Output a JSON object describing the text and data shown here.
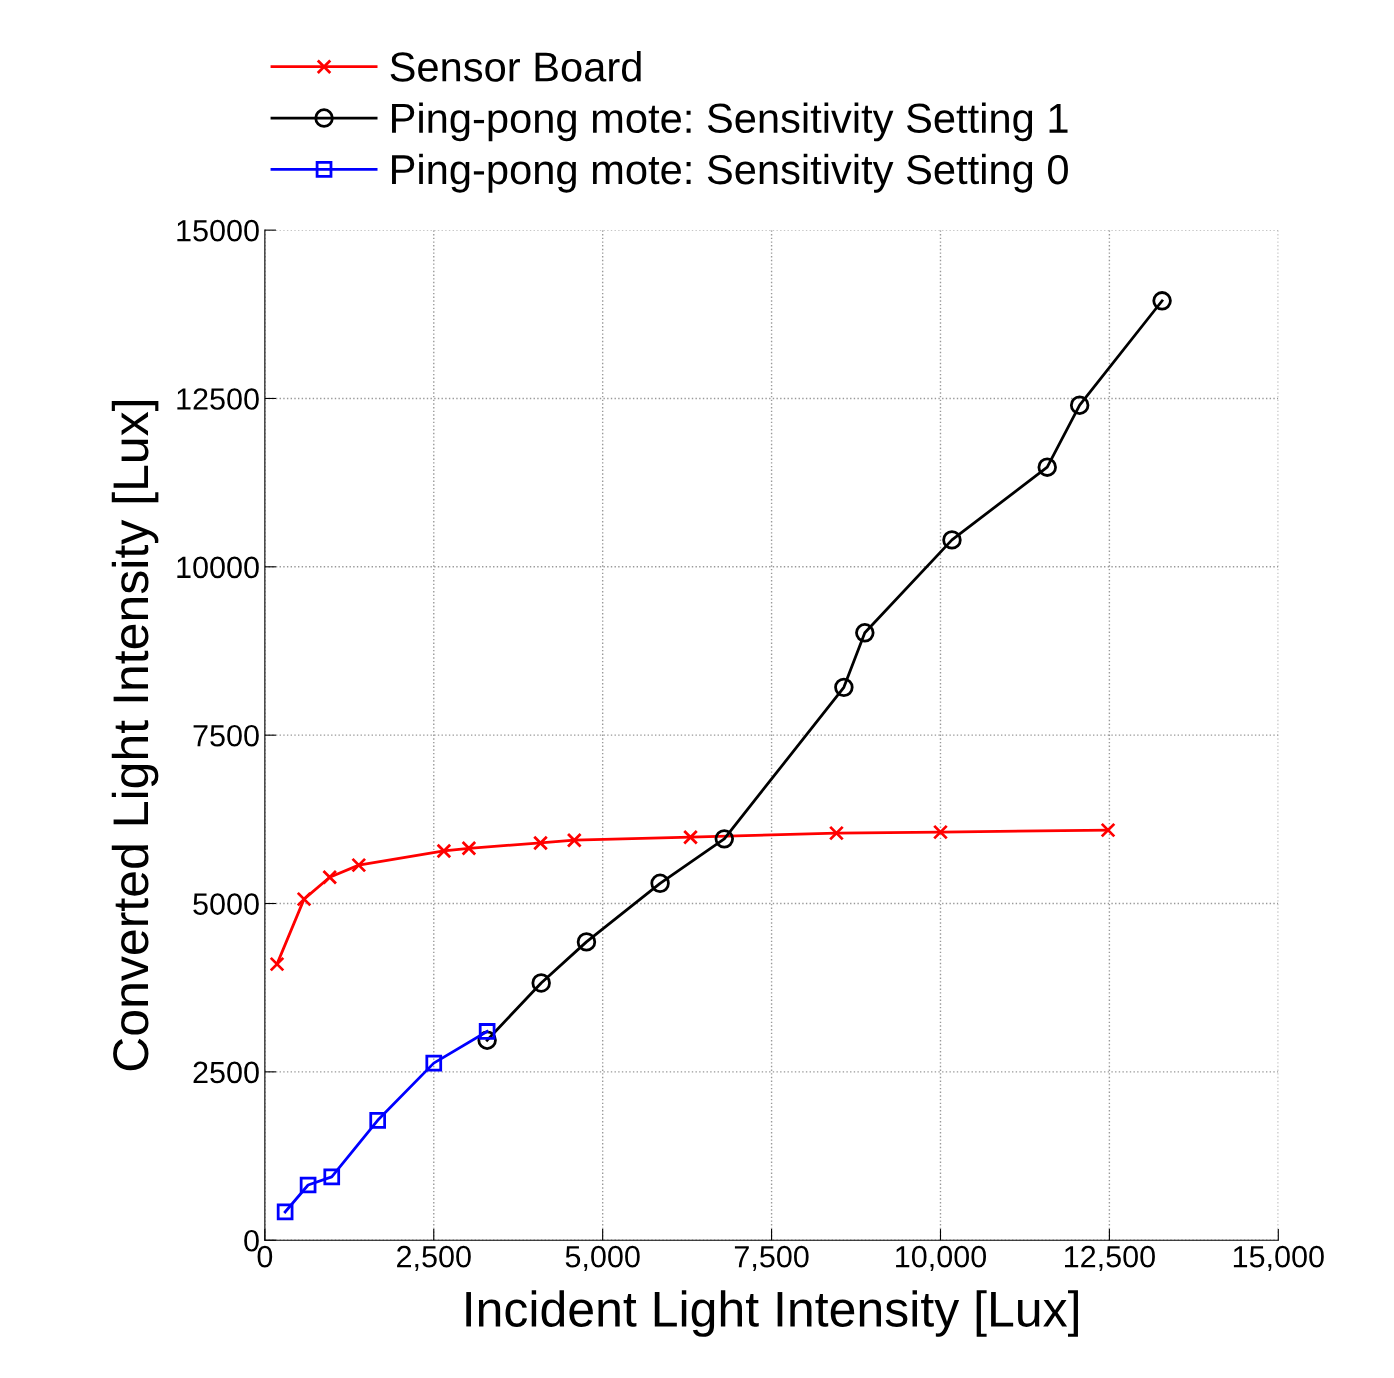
{
  "chart_data": {
    "type": "line",
    "xlabel": "Incident Light Intensity [Lux]",
    "ylabel": "Converted Light Intensity [Lux]",
    "xlim": [
      0,
      15000
    ],
    "xticks": [
      0,
      {
        "value": 2500,
        "label": "2,500"
      },
      {
        "value": 5000,
        "label": "5,000"
      },
      {
        "value": 7500,
        "label": "7,500"
      },
      {
        "value": 10000,
        "label": "10,000"
      },
      {
        "value": 12500,
        "label": "12,500"
      },
      {
        "value": 15000,
        "label": "15,000"
      }
    ],
    "ylim": [
      0,
      15000
    ],
    "yticks": [
      0,
      2500,
      5000,
      7500,
      10000,
      12500,
      15000
    ],
    "grid": true,
    "legend": "top",
    "series": [
      {
        "name": "Sensor Board",
        "color": "#ff0000",
        "marker": "cross",
        "x": [
          180,
          580,
          960,
          1390,
          2650,
          3020,
          4080,
          4580,
          6300,
          8460,
          10000,
          12480
        ],
        "values": [
          4100,
          5065,
          5390,
          5570,
          5780,
          5820,
          5900,
          5940,
          5985,
          6045,
          6060,
          6090
        ]
      },
      {
        "name": "Ping-pong mote: Sensitivity Setting 1",
        "color": "#000000",
        "marker": "circle",
        "x": [
          3290,
          4090,
          4760,
          5850,
          6800,
          8570,
          8880,
          10170,
          11580,
          12060,
          13280
        ],
        "values": [
          2970,
          3820,
          4430,
          5300,
          5960,
          8210,
          9020,
          10400,
          11480,
          12400,
          13950
        ]
      },
      {
        "name": "Ping-pong mote: Sensitivity Setting 0",
        "color": "#0000ff",
        "marker": "square",
        "x": [
          300,
          640,
          990,
          1670,
          2500,
          3290
        ],
        "values": [
          420,
          820,
          940,
          1780,
          2630,
          3100
        ]
      }
    ]
  }
}
